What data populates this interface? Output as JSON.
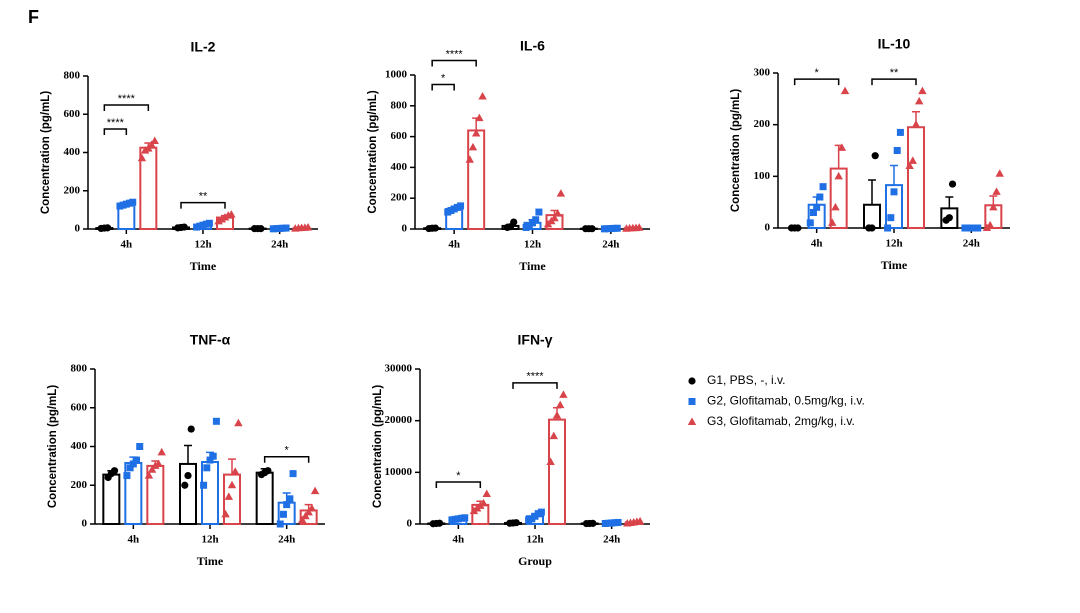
{
  "panel_label": "F",
  "legend": [
    {
      "name": "G1, PBS, -, i.v.",
      "color": "#000000",
      "marker": "circle"
    },
    {
      "name": "G2, Glofitamab, 0.5mg/kg, i.v.",
      "color": "#1f6fe5",
      "marker": "square"
    },
    {
      "name": "G3, Glofitamab, 2mg/kg, i.v.",
      "color": "#d9434a",
      "marker": "triangle"
    }
  ],
  "chart_data": [
    {
      "type": "bar",
      "title": "IL-2",
      "xlabel": "Time",
      "ylabel": "Concentration (pg/mL)",
      "categories": [
        "4h",
        "12h",
        "24h"
      ],
      "ylim": [
        0,
        800
      ],
      "yticks": [
        0,
        200,
        400,
        600,
        800
      ],
      "series": [
        {
          "values": [
            5,
            8,
            2
          ],
          "errors": [
            1,
            1,
            0
          ],
          "points": [
            [
              3,
              5,
              6
            ],
            [
              6,
              8,
              10
            ],
            [
              2,
              2,
              2
            ]
          ]
        },
        {
          "values": [
            130,
            20,
            3
          ],
          "errors": [
            8,
            5,
            1
          ],
          "points": [
            [
              120,
              125,
              130,
              135,
              140
            ],
            [
              10,
              15,
              20,
              25,
              30
            ],
            [
              1,
              2,
              3,
              4,
              5
            ]
          ]
        },
        {
          "values": [
            425,
            60,
            5
          ],
          "errors": [
            25,
            10,
            2
          ],
          "points": [
            [
              370,
              410,
              420,
              440,
              460
            ],
            [
              40,
              50,
              60,
              70,
              75
            ],
            [
              2,
              4,
              5,
              6,
              8
            ]
          ]
        }
      ],
      "annotations": [
        {
          "label": "****",
          "category": 0,
          "series": [
            0,
            1
          ]
        },
        {
          "label": "****",
          "category": 0,
          "series": [
            0,
            2
          ]
        },
        {
          "label": "**",
          "category": 1,
          "series": [
            0,
            2
          ]
        }
      ]
    },
    {
      "type": "bar",
      "title": "IL-6",
      "xlabel": "Time",
      "ylabel": "Concentration (pg/mL)",
      "categories": [
        "4h",
        "12h",
        "24h"
      ],
      "ylim": [
        0,
        1000
      ],
      "yticks": [
        0,
        200,
        400,
        600,
        800,
        1000
      ],
      "series": [
        {
          "values": [
            5,
            20,
            2
          ],
          "errors": [
            1,
            10,
            0
          ],
          "points": [
            [
              3,
              5,
              6
            ],
            [
              10,
              15,
              45
            ],
            [
              2,
              2,
              2
            ]
          ]
        },
        {
          "values": [
            130,
            40,
            3
          ],
          "errors": [
            10,
            20,
            1
          ],
          "points": [
            [
              110,
              120,
              130,
              140,
              150
            ],
            [
              10,
              20,
              40,
              60,
              110
            ],
            [
              1,
              2,
              3,
              4,
              5
            ]
          ]
        },
        {
          "values": [
            640,
            90,
            5
          ],
          "errors": [
            80,
            30,
            2
          ],
          "points": [
            [
              450,
              530,
              620,
              720,
              860
            ],
            [
              30,
              50,
              70,
              100,
              230
            ],
            [
              2,
              4,
              5,
              6,
              8
            ]
          ]
        }
      ],
      "annotations": [
        {
          "label": "*",
          "category": 0,
          "series": [
            0,
            1
          ]
        },
        {
          "label": "****",
          "category": 0,
          "series": [
            0,
            2
          ]
        }
      ]
    },
    {
      "type": "bar",
      "title": "IL-10",
      "xlabel": "Time",
      "ylabel": "Concentration (pg/mL)",
      "categories": [
        "4h",
        "12h",
        "24h"
      ],
      "ylim": [
        0,
        300
      ],
      "yticks": [
        0,
        100,
        200,
        300
      ],
      "series": [
        {
          "values": [
            0,
            45,
            38
          ],
          "errors": [
            0,
            48,
            22
          ],
          "points": [
            [
              0,
              0,
              0
            ],
            [
              0,
              0,
              140
            ],
            [
              15,
              20,
              85
            ]
          ]
        },
        {
          "values": [
            45,
            83,
            0
          ],
          "errors": [
            15,
            38,
            0
          ],
          "points": [
            [
              10,
              30,
              40,
              60,
              80
            ],
            [
              0,
              20,
              70,
              150,
              185
            ],
            [
              0,
              0,
              0,
              0,
              0
            ]
          ]
        },
        {
          "values": [
            115,
            195,
            44
          ],
          "errors": [
            45,
            30,
            18
          ],
          "points": [
            [
              10,
              40,
              100,
              155,
              265
            ],
            [
              120,
              130,
              200,
              245,
              265
            ],
            [
              0,
              5,
              40,
              70,
              105
            ]
          ]
        }
      ],
      "annotations": [
        {
          "label": "*",
          "category": 0,
          "series": [
            0,
            2
          ]
        },
        {
          "label": "**",
          "category": 1,
          "series": [
            0,
            2
          ]
        }
      ]
    },
    {
      "type": "bar",
      "title": "TNF-α",
      "xlabel": "Time",
      "ylabel": "Concentration (pg/mL)",
      "categories": [
        "4h",
        "12h",
        "24h"
      ],
      "ylim": [
        0,
        800
      ],
      "yticks": [
        0,
        200,
        400,
        600,
        800
      ],
      "series": [
        {
          "values": [
            255,
            310,
            265
          ],
          "errors": [
            20,
            95,
            20
          ],
          "points": [
            [
              240,
              260,
              275
            ],
            [
              200,
              250,
              490
            ],
            [
              255,
              265,
              275
            ]
          ]
        },
        {
          "values": [
            315,
            320,
            110
          ],
          "errors": [
            30,
            50,
            50
          ],
          "points": [
            [
              250,
              290,
              310,
              330,
              400
            ],
            [
              200,
              290,
              330,
              350,
              530
            ],
            [
              0,
              50,
              100,
              130,
              260
            ]
          ]
        },
        {
          "values": [
            300,
            255,
            70
          ],
          "errors": [
            25,
            80,
            30
          ],
          "points": [
            [
              250,
              280,
              300,
              310,
              370
            ],
            [
              50,
              140,
              200,
              270,
              520
            ],
            [
              20,
              40,
              60,
              80,
              170
            ]
          ]
        }
      ],
      "annotations": [
        {
          "label": "*",
          "category": 2,
          "series": [
            0,
            2
          ]
        }
      ]
    },
    {
      "type": "bar",
      "title": "IFN-γ",
      "xlabel": "Group",
      "ylabel": "Concentration (pg/mL)",
      "categories": [
        "4h",
        "12h",
        "24h"
      ],
      "ylim": [
        0,
        30000
      ],
      "yticks": [
        0,
        10000,
        20000,
        30000
      ],
      "series": [
        {
          "values": [
            100,
            200,
            100
          ],
          "errors": [
            50,
            50,
            20
          ],
          "points": [
            [
              50,
              100,
              150
            ],
            [
              150,
              200,
              250
            ],
            [
              80,
              100,
              120
            ]
          ]
        },
        {
          "values": [
            1000,
            1500,
            200
          ],
          "errors": [
            200,
            400,
            50
          ],
          "points": [
            [
              800,
              900,
              1000,
              1100,
              1200
            ],
            [
              800,
              1000,
              1500,
              2000,
              2300
            ],
            [
              100,
              150,
              200,
              250,
              300
            ]
          ]
        },
        {
          "values": [
            3700,
            20200,
            300
          ],
          "errors": [
            700,
            2300,
            100
          ],
          "points": [
            [
              2500,
              3000,
              3500,
              4000,
              5800
            ],
            [
              12000,
              17000,
              21000,
              23000,
              25000
            ],
            [
              100,
              200,
              300,
              400,
              500
            ]
          ]
        }
      ],
      "annotations": [
        {
          "label": "*",
          "category": 0,
          "series": [
            0,
            2
          ]
        },
        {
          "label": "****",
          "category": 1,
          "series": [
            0,
            2
          ]
        }
      ]
    }
  ]
}
